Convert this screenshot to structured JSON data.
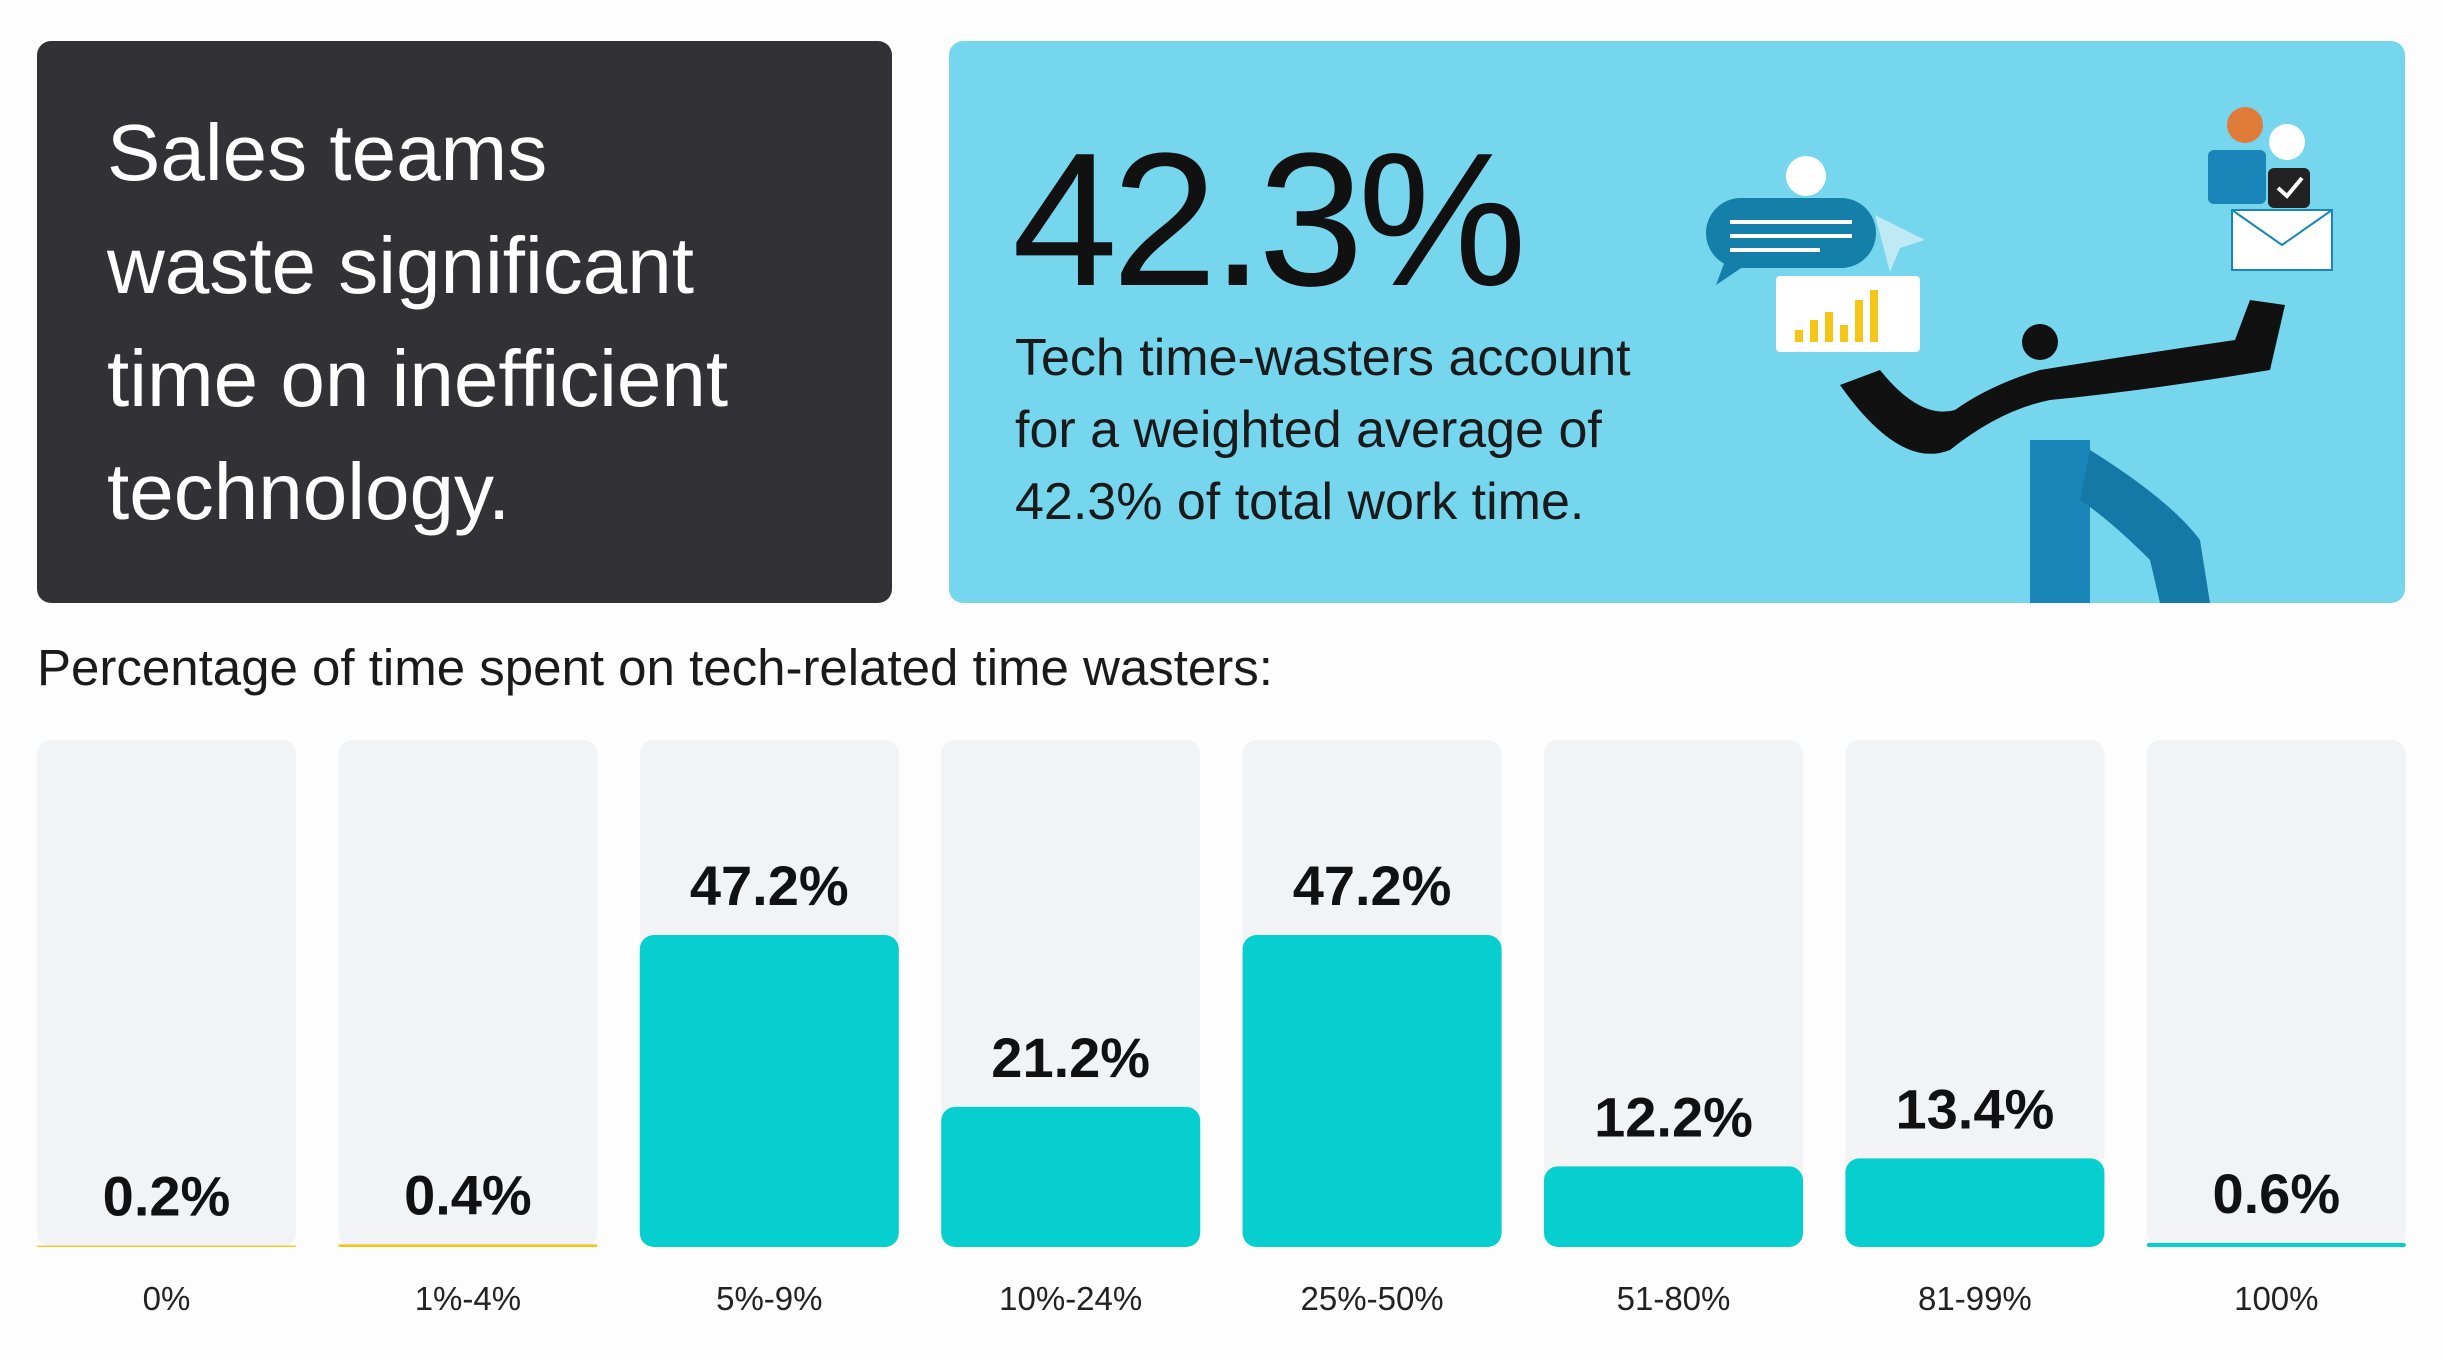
{
  "headline": [
    "Sales teams",
    "waste significant",
    "time on inefficient",
    "technology."
  ],
  "stat": {
    "figure": "42.3%",
    "description": [
      "Tech time-wasters account",
      "for a weighted average of",
      "42.3% of total work time."
    ]
  },
  "chart_data": {
    "type": "bar",
    "title": "Percentage of time spent on tech-related time wasters:",
    "categories": [
      "0%",
      "1%-4%",
      "5%-9%",
      "10%-24%",
      "25%-50%",
      "51-80%",
      "81-99%",
      "100%"
    ],
    "values": [
      0.2,
      0.4,
      47.2,
      21.2,
      47.2,
      12.2,
      13.4,
      0.6
    ],
    "value_labels": [
      "0.2%",
      "0.4%",
      "47.2%",
      "21.2%",
      "47.2%",
      "12.2%",
      "13.4%",
      "0.6%"
    ],
    "colors": [
      "#f5c518",
      "#f5c518",
      "#08cfcf",
      "#08cfcf",
      "#08cfcf",
      "#08cfcf",
      "#08cfcf",
      "#08cfcf"
    ]
  }
}
